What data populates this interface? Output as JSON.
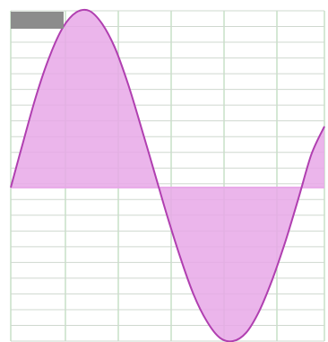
{
  "chart_data": {
    "type": "area",
    "title": "",
    "xlabel": "",
    "ylabel": "",
    "grid": true,
    "xlim": [
      0,
      6
    ],
    "ylim": [
      -1.0,
      1.0
    ],
    "baseline": -0.07,
    "x": [
      0,
      0.25,
      0.5,
      0.75,
      1.0,
      1.25,
      1.5,
      1.75,
      2.0,
      2.25,
      2.5,
      2.75,
      3.0,
      3.25,
      3.5,
      3.75,
      4.0,
      4.25,
      4.5,
      4.75,
      5.0,
      5.25,
      5.5,
      5.75,
      6.0
    ],
    "series": [
      {
        "values": [
          -0.07,
          0.22,
          0.5,
          0.73,
          0.9,
          0.99,
          1.0,
          0.92,
          0.77,
          0.55,
          0.29,
          0.02,
          -0.25,
          -0.5,
          -0.72,
          -0.88,
          -0.98,
          -1.0,
          -0.95,
          -0.82,
          -0.63,
          -0.4,
          -0.14,
          0.13,
          0.3
        ],
        "color": "#b03fb0",
        "fill": "#e8a8e8"
      }
    ],
    "legend_swatch_color": "#8c8c8c",
    "grid_color": "#b9d8b9"
  }
}
